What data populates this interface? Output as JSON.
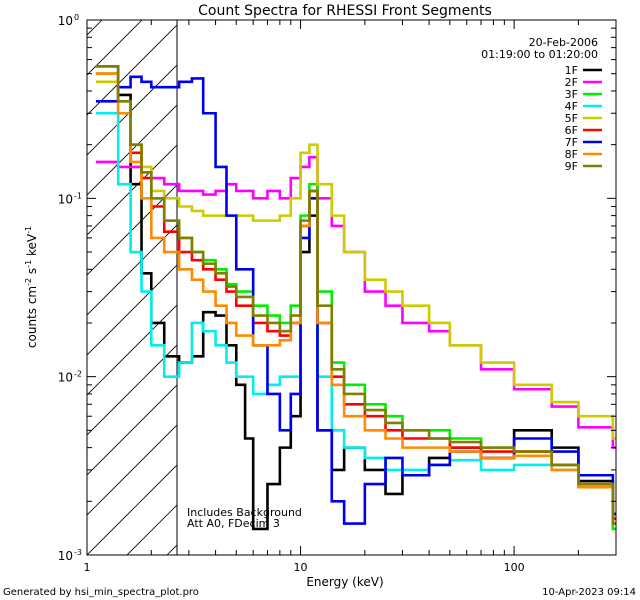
{
  "chart_data": {
    "type": "line",
    "title": "Count Spectra for RHESSI Front Segments",
    "xlabel": "Energy (keV)",
    "ylabel_parts": [
      "counts cm",
      "-2",
      " s",
      "-1",
      " keV",
      "-1"
    ],
    "xscale": "log",
    "yscale": "log",
    "xlim": [
      1,
      300
    ],
    "ylim": [
      0.001,
      1
    ],
    "x_ticks": [
      {
        "value": 1,
        "label": "1"
      },
      {
        "value": 10,
        "label": "10"
      },
      {
        "value": 100,
        "label": "100"
      }
    ],
    "y_ticks": [
      {
        "value": 1,
        "mantissa": "10",
        "exp": "0"
      },
      {
        "value": 0.1,
        "mantissa": "10",
        "exp": "-1"
      },
      {
        "value": 0.01,
        "mantissa": "10",
        "exp": "-2"
      },
      {
        "value": 0.001,
        "mantissa": "10",
        "exp": "-3"
      }
    ],
    "date": "20-Feb-2006",
    "time_range": "01:19:00 to 01:20:00",
    "annotations": [
      "Includes Background",
      "Att A0, FDecim 3"
    ],
    "hatched_region_keV": [
      1,
      3
    ],
    "footer_left": "Generated by hsi_min_spectra_plot.pro",
    "footer_right": "10-Apr-2023 09:14",
    "series": [
      {
        "name": "1F",
        "color": "#000000",
        "points": [
          [
            1.2,
            0.55
          ],
          [
            1.4,
            0.38
          ],
          [
            1.6,
            0.12
          ],
          [
            1.8,
            0.038
          ],
          [
            2.0,
            0.02
          ],
          [
            2.3,
            0.013
          ],
          [
            2.7,
            0.012
          ],
          [
            3.1,
            0.013
          ],
          [
            3.5,
            0.023
          ],
          [
            4.0,
            0.022
          ],
          [
            4.5,
            0.015
          ],
          [
            5.0,
            0.009
          ],
          [
            5.5,
            0.0045
          ],
          [
            6.0,
            0.0014
          ],
          [
            7,
            0.0025
          ],
          [
            8,
            0.004
          ],
          [
            9,
            0.006
          ],
          [
            10,
            0.05
          ],
          [
            11,
            0.08
          ],
          [
            12,
            0.005
          ],
          [
            14,
            0.003
          ],
          [
            16,
            0.004
          ],
          [
            20,
            0.003
          ],
          [
            25,
            0.0022
          ],
          [
            30,
            0.0028
          ],
          [
            40,
            0.0035
          ],
          [
            50,
            0.004
          ],
          [
            70,
            0.0035
          ],
          [
            100,
            0.005
          ],
          [
            150,
            0.004
          ],
          [
            200,
            0.0026
          ],
          [
            290,
            0.0015
          ]
        ]
      },
      {
        "name": "2F",
        "color": "#ff00ff",
        "points": [
          [
            1.2,
            0.16
          ],
          [
            1.4,
            0.15
          ],
          [
            1.6,
            0.15
          ],
          [
            1.8,
            0.14
          ],
          [
            2.0,
            0.13
          ],
          [
            2.3,
            0.12
          ],
          [
            2.7,
            0.11
          ],
          [
            3.1,
            0.11
          ],
          [
            3.5,
            0.105
          ],
          [
            4.0,
            0.11
          ],
          [
            4.5,
            0.12
          ],
          [
            5.0,
            0.11
          ],
          [
            6.0,
            0.1
          ],
          [
            7,
            0.11
          ],
          [
            8,
            0.1
          ],
          [
            9,
            0.13
          ],
          [
            10,
            0.15
          ],
          [
            11,
            0.17
          ],
          [
            12,
            0.1
          ],
          [
            14,
            0.07
          ],
          [
            16,
            0.05
          ],
          [
            20,
            0.03
          ],
          [
            25,
            0.025
          ],
          [
            30,
            0.02
          ],
          [
            40,
            0.018
          ],
          [
            50,
            0.015
          ],
          [
            70,
            0.011
          ],
          [
            100,
            0.0085
          ],
          [
            150,
            0.0068
          ],
          [
            200,
            0.0052
          ],
          [
            290,
            0.004
          ]
        ]
      },
      {
        "name": "3F",
        "color": "#00ee00",
        "points": [
          [
            1.2,
            0.5
          ],
          [
            1.4,
            0.35
          ],
          [
            1.6,
            0.2
          ],
          [
            1.8,
            0.14
          ],
          [
            2.0,
            0.1
          ],
          [
            2.3,
            0.075
          ],
          [
            2.7,
            0.06
          ],
          [
            3.1,
            0.05
          ],
          [
            3.5,
            0.045
          ],
          [
            4.0,
            0.04
          ],
          [
            4.5,
            0.033
          ],
          [
            5.0,
            0.03
          ],
          [
            6.0,
            0.025
          ],
          [
            7,
            0.022
          ],
          [
            8,
            0.02
          ],
          [
            9,
            0.025
          ],
          [
            10,
            0.08
          ],
          [
            11,
            0.12
          ],
          [
            12,
            0.03
          ],
          [
            14,
            0.012
          ],
          [
            16,
            0.009
          ],
          [
            20,
            0.007
          ],
          [
            25,
            0.006
          ],
          [
            30,
            0.005
          ],
          [
            40,
            0.005
          ],
          [
            50,
            0.0045
          ],
          [
            70,
            0.004
          ],
          [
            100,
            0.0038
          ],
          [
            150,
            0.0032
          ],
          [
            200,
            0.0024
          ],
          [
            290,
            0.0014
          ]
        ]
      },
      {
        "name": "4F",
        "color": "#00eeee",
        "points": [
          [
            1.2,
            0.3
          ],
          [
            1.4,
            0.12
          ],
          [
            1.6,
            0.05
          ],
          [
            1.8,
            0.03
          ],
          [
            2.0,
            0.015
          ],
          [
            2.3,
            0.01
          ],
          [
            2.7,
            0.012
          ],
          [
            3.1,
            0.02
          ],
          [
            3.5,
            0.018
          ],
          [
            4.0,
            0.015
          ],
          [
            4.5,
            0.012
          ],
          [
            5.0,
            0.01
          ],
          [
            6.0,
            0.008
          ],
          [
            7,
            0.009
          ],
          [
            8,
            0.01
          ],
          [
            9,
            0.01
          ],
          [
            10,
            0.07
          ],
          [
            11,
            0.1
          ],
          [
            12,
            0.01
          ],
          [
            14,
            0.005
          ],
          [
            16,
            0.004
          ],
          [
            20,
            0.0035
          ],
          [
            25,
            0.003
          ],
          [
            30,
            0.003
          ],
          [
            40,
            0.0032
          ],
          [
            50,
            0.0034
          ],
          [
            70,
            0.003
          ],
          [
            100,
            0.0032
          ],
          [
            150,
            0.003
          ],
          [
            200,
            0.0025
          ],
          [
            290,
            0.0017
          ]
        ]
      },
      {
        "name": "5F",
        "color": "#cccc00",
        "points": [
          [
            1.2,
            0.45
          ],
          [
            1.4,
            0.3
          ],
          [
            1.6,
            0.2
          ],
          [
            1.8,
            0.15
          ],
          [
            2.0,
            0.11
          ],
          [
            2.3,
            0.1
          ],
          [
            2.7,
            0.09
          ],
          [
            3.1,
            0.085
          ],
          [
            3.5,
            0.08
          ],
          [
            4.0,
            0.08
          ],
          [
            4.5,
            0.08
          ],
          [
            5.0,
            0.08
          ],
          [
            6.0,
            0.075
          ],
          [
            7,
            0.075
          ],
          [
            8,
            0.08
          ],
          [
            9,
            0.1
          ],
          [
            10,
            0.18
          ],
          [
            11,
            0.2
          ],
          [
            12,
            0.12
          ],
          [
            14,
            0.08
          ],
          [
            16,
            0.05
          ],
          [
            20,
            0.035
          ],
          [
            25,
            0.03
          ],
          [
            30,
            0.025
          ],
          [
            40,
            0.02
          ],
          [
            50,
            0.015
          ],
          [
            70,
            0.012
          ],
          [
            100,
            0.009
          ],
          [
            150,
            0.0072
          ],
          [
            200,
            0.006
          ],
          [
            290,
            0.0045
          ]
        ]
      },
      {
        "name": "6F",
        "color": "#ff0000",
        "points": [
          [
            1.2,
            0.5
          ],
          [
            1.4,
            0.3
          ],
          [
            1.6,
            0.18
          ],
          [
            1.8,
            0.13
          ],
          [
            2.0,
            0.09
          ],
          [
            2.3,
            0.065
          ],
          [
            2.7,
            0.05
          ],
          [
            3.1,
            0.045
          ],
          [
            3.5,
            0.04
          ],
          [
            4.0,
            0.035
          ],
          [
            4.5,
            0.03
          ],
          [
            5.0,
            0.025
          ],
          [
            6.0,
            0.02
          ],
          [
            7,
            0.018
          ],
          [
            8,
            0.017
          ],
          [
            9,
            0.02
          ],
          [
            10,
            0.07
          ],
          [
            11,
            0.11
          ],
          [
            12,
            0.02
          ],
          [
            14,
            0.01
          ],
          [
            16,
            0.007
          ],
          [
            20,
            0.006
          ],
          [
            25,
            0.005
          ],
          [
            30,
            0.0045
          ],
          [
            40,
            0.0045
          ],
          [
            50,
            0.004
          ],
          [
            70,
            0.0038
          ],
          [
            100,
            0.0038
          ],
          [
            150,
            0.0032
          ],
          [
            200,
            0.0025
          ],
          [
            290,
            0.0016
          ]
        ]
      },
      {
        "name": "7F",
        "color": "#0000ee",
        "points": [
          [
            1.2,
            0.35
          ],
          [
            1.4,
            0.42
          ],
          [
            1.6,
            0.48
          ],
          [
            1.8,
            0.45
          ],
          [
            2.0,
            0.42
          ],
          [
            2.3,
            0.42
          ],
          [
            2.7,
            0.45
          ],
          [
            3.1,
            0.47
          ],
          [
            3.5,
            0.3
          ],
          [
            4.0,
            0.15
          ],
          [
            4.5,
            0.08
          ],
          [
            5.0,
            0.04
          ],
          [
            6.0,
            0.015
          ],
          [
            7,
            0.008
          ],
          [
            8,
            0.005
          ],
          [
            9,
            0.008
          ],
          [
            10,
            0.06
          ],
          [
            11,
            0.1
          ],
          [
            12,
            0.005
          ],
          [
            14,
            0.002
          ],
          [
            16,
            0.0015
          ],
          [
            20,
            0.0025
          ],
          [
            25,
            0.0035
          ],
          [
            30,
            0.0028
          ],
          [
            40,
            0.0032
          ],
          [
            50,
            0.0038
          ],
          [
            70,
            0.0035
          ],
          [
            100,
            0.0045
          ],
          [
            150,
            0.0038
          ],
          [
            200,
            0.0028
          ],
          [
            290,
            0.0017
          ]
        ]
      },
      {
        "name": "8F",
        "color": "#ff8c00",
        "points": [
          [
            1.2,
            0.5
          ],
          [
            1.4,
            0.3
          ],
          [
            1.6,
            0.16
          ],
          [
            1.8,
            0.1
          ],
          [
            2.0,
            0.06
          ],
          [
            2.3,
            0.05
          ],
          [
            2.7,
            0.04
          ],
          [
            3.1,
            0.035
          ],
          [
            3.5,
            0.03
          ],
          [
            4.0,
            0.025
          ],
          [
            4.5,
            0.02
          ],
          [
            5.0,
            0.017
          ],
          [
            6.0,
            0.015
          ],
          [
            7,
            0.015
          ],
          [
            8,
            0.016
          ],
          [
            9,
            0.02
          ],
          [
            10,
            0.07
          ],
          [
            11,
            0.11
          ],
          [
            12,
            0.02
          ],
          [
            14,
            0.009
          ],
          [
            16,
            0.006
          ],
          [
            20,
            0.005
          ],
          [
            25,
            0.0045
          ],
          [
            30,
            0.004
          ],
          [
            40,
            0.004
          ],
          [
            50,
            0.0038
          ],
          [
            70,
            0.0035
          ],
          [
            100,
            0.0036
          ],
          [
            150,
            0.003
          ],
          [
            200,
            0.0024
          ],
          [
            290,
            0.0015
          ]
        ]
      },
      {
        "name": "9F",
        "color": "#808000",
        "points": [
          [
            1.2,
            0.55
          ],
          [
            1.4,
            0.35
          ],
          [
            1.6,
            0.2
          ],
          [
            1.8,
            0.14
          ],
          [
            2.0,
            0.1
          ],
          [
            2.3,
            0.075
          ],
          [
            2.7,
            0.06
          ],
          [
            3.1,
            0.05
          ],
          [
            3.5,
            0.043
          ],
          [
            4.0,
            0.038
          ],
          [
            4.5,
            0.032
          ],
          [
            5.0,
            0.028
          ],
          [
            6.0,
            0.022
          ],
          [
            7,
            0.02
          ],
          [
            8,
            0.018
          ],
          [
            9,
            0.022
          ],
          [
            10,
            0.075
          ],
          [
            11,
            0.11
          ],
          [
            12,
            0.025
          ],
          [
            14,
            0.011
          ],
          [
            16,
            0.008
          ],
          [
            20,
            0.0065
          ],
          [
            25,
            0.0055
          ],
          [
            30,
            0.005
          ],
          [
            40,
            0.0045
          ],
          [
            50,
            0.0043
          ],
          [
            70,
            0.004
          ],
          [
            100,
            0.0038
          ],
          [
            150,
            0.0032
          ],
          [
            200,
            0.0025
          ],
          [
            290,
            0.0015
          ]
        ]
      }
    ]
  }
}
